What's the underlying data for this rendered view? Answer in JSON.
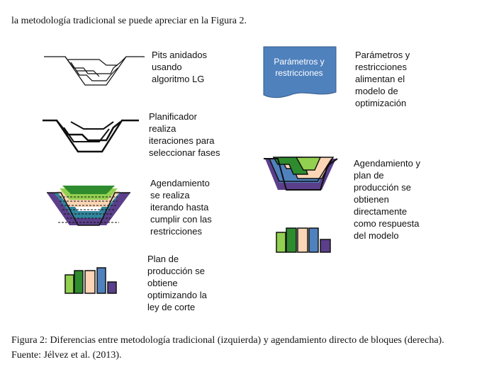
{
  "intro_text": "la metodología tradicional se puede apreciar en la Figura 2.",
  "left_column": {
    "pits_label": [
      "Pits anidados",
      "usando",
      "algoritmo LG"
    ],
    "planner_label": [
      "Planificador",
      "realiza",
      "iteraciones para",
      "seleccionar fases"
    ],
    "scheduling_label": [
      "Agendamiento",
      "se realiza",
      "iterando hasta",
      "cumplir con las",
      "restricciones"
    ],
    "production_label": [
      "Plan de",
      "producción se",
      "obtiene",
      "optimizando la",
      "ley de corte"
    ]
  },
  "right_column": {
    "document_shape_text": [
      "Parámetros y",
      "restricciones"
    ],
    "parameters_label": [
      "Parámetros y",
      "restricciones",
      "alimentan el",
      "modelo de",
      "optimización"
    ],
    "direct_scheduling_label": [
      "Agendamiento y",
      "plan de",
      "producción se",
      "obtienen",
      "directamente",
      "como respuesta",
      "del modelo"
    ]
  },
  "caption": "Figura 2: Diferencias entre metodología tradicional (izquierda) y agendamiento directo de bloques (derecha). Fuente: Jélvez et al. (2013).",
  "colors": {
    "dark_green": "#2e8b2e",
    "light_green": "#92d050",
    "peach": "#fbd5b5",
    "blue": "#4f81bd",
    "purple": "#5b3f8a",
    "teal": "#31859c",
    "document_blue": "#4f81bd"
  }
}
